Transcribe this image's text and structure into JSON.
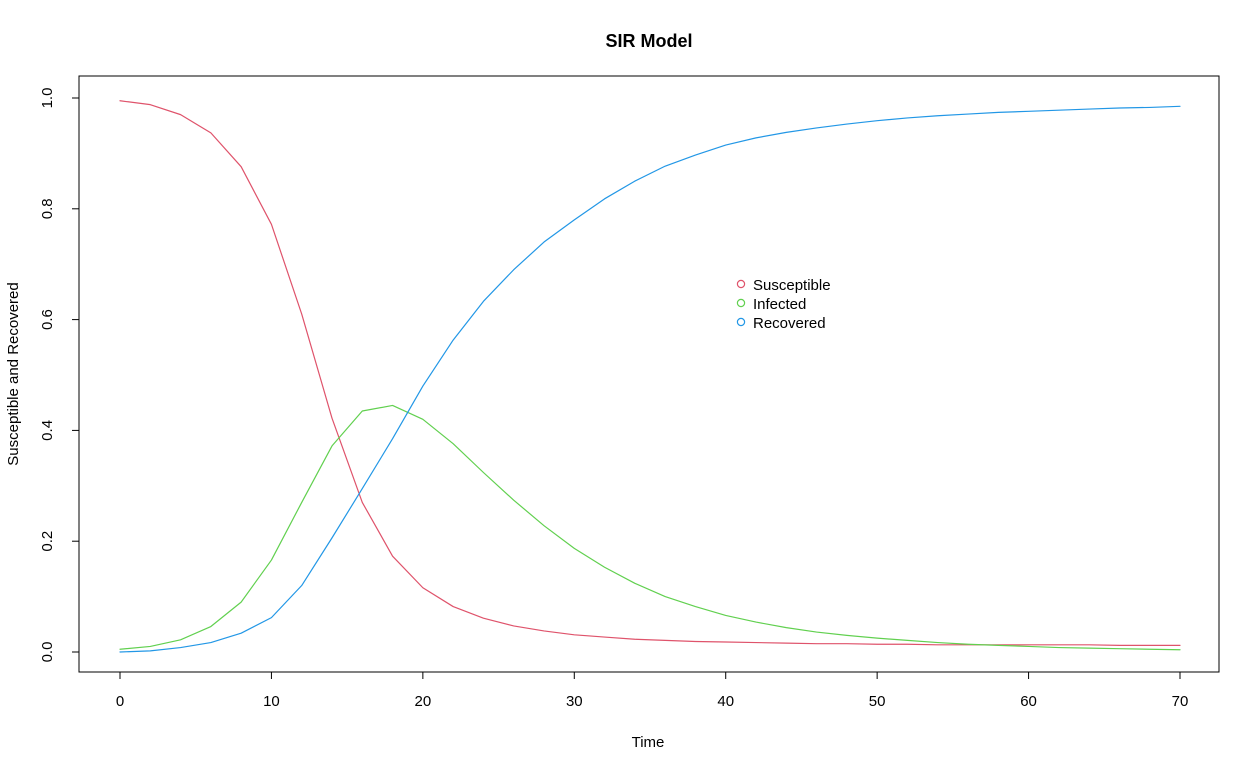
{
  "chart_data": {
    "type": "line",
    "title": "SIR Model",
    "xlabel": "Time",
    "ylabel": "Susceptible and Recovered",
    "xlim": [
      0,
      70
    ],
    "ylim": [
      0,
      1
    ],
    "x_ticks": [
      "0",
      "10",
      "20",
      "30",
      "40",
      "50",
      "60",
      "70"
    ],
    "y_ticks": [
      "0.0",
      "0.2",
      "0.4",
      "0.6",
      "0.8",
      "1.0"
    ],
    "grid": false,
    "legend_position": "center-right",
    "x": [
      0,
      2,
      4,
      6,
      8,
      10,
      12,
      14,
      16,
      18,
      20,
      22,
      24,
      26,
      28,
      30,
      32,
      34,
      36,
      38,
      40,
      42,
      44,
      46,
      48,
      50,
      52,
      54,
      56,
      58,
      60,
      62,
      64,
      66,
      68,
      70
    ],
    "series": [
      {
        "name": "Susceptible",
        "color": "#df536b",
        "values": [
          0.995,
          0.988,
          0.97,
          0.937,
          0.876,
          0.772,
          0.61,
          0.422,
          0.27,
          0.173,
          0.116,
          0.082,
          0.061,
          0.047,
          0.038,
          0.031,
          0.027,
          0.023,
          0.021,
          0.019,
          0.018,
          0.017,
          0.016,
          0.015,
          0.015,
          0.014,
          0.014,
          0.013,
          0.013,
          0.013,
          0.013,
          0.013,
          0.013,
          0.012,
          0.012,
          0.012
        ]
      },
      {
        "name": "Infected",
        "color": "#61d04f",
        "values": [
          0.005,
          0.01,
          0.022,
          0.046,
          0.09,
          0.166,
          0.27,
          0.372,
          0.435,
          0.445,
          0.42,
          0.376,
          0.324,
          0.274,
          0.228,
          0.187,
          0.153,
          0.124,
          0.1,
          0.082,
          0.066,
          0.054,
          0.044,
          0.036,
          0.03,
          0.025,
          0.021,
          0.017,
          0.014,
          0.012,
          0.01,
          0.008,
          0.007,
          0.006,
          0.005,
          0.004
        ]
      },
      {
        "name": "Recovered",
        "color": "#2297e6",
        "values": [
          0.0,
          0.002,
          0.008,
          0.017,
          0.034,
          0.062,
          0.12,
          0.206,
          0.295,
          0.385,
          0.48,
          0.563,
          0.633,
          0.69,
          0.74,
          0.78,
          0.818,
          0.85,
          0.877,
          0.897,
          0.915,
          0.928,
          0.938,
          0.946,
          0.953,
          0.959,
          0.964,
          0.968,
          0.971,
          0.974,
          0.976,
          0.978,
          0.98,
          0.982,
          0.983,
          0.985
        ]
      }
    ]
  }
}
